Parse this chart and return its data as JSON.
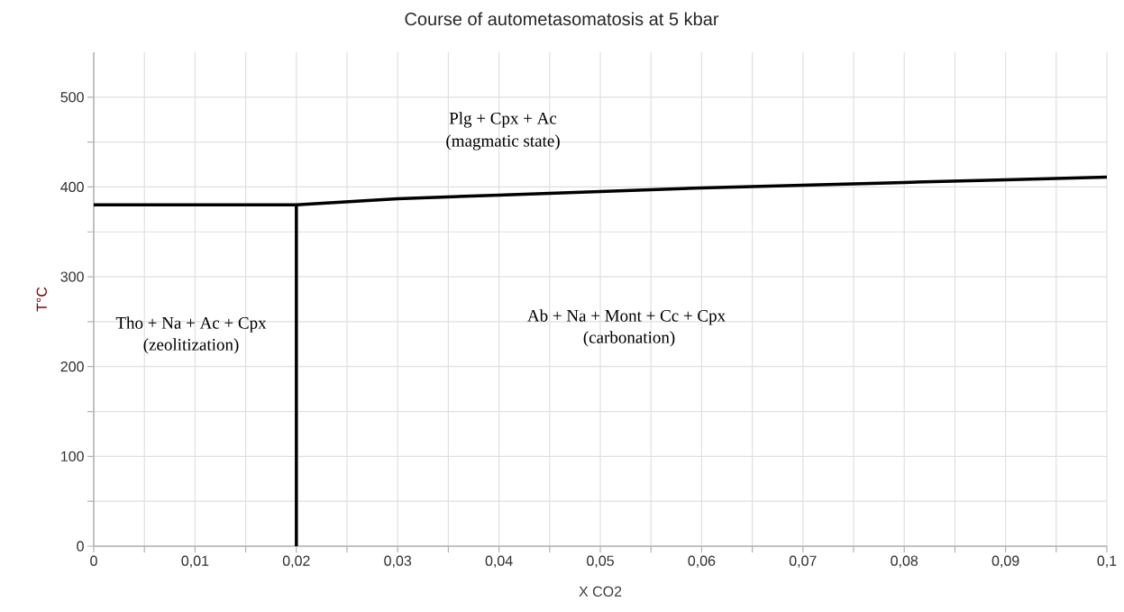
{
  "chart_data": {
    "type": "line",
    "title": "Course of autometasomatosis at 5 kbar",
    "xlabel": "X CO2",
    "ylabel": "T°C",
    "xlim": [
      0,
      0.1
    ],
    "ylim": [
      0,
      550
    ],
    "xticks": [
      0,
      {
        "value": 0.005,
        "label": null
      },
      {
        "value": 0.01,
        "label": "0,01"
      },
      {
        "value": 0.015,
        "label": null
      },
      {
        "value": 0.02,
        "label": "0,02"
      },
      {
        "value": 0.025,
        "label": null
      },
      {
        "value": 0.03,
        "label": "0,03"
      },
      {
        "value": 0.035,
        "label": null
      },
      {
        "value": 0.04,
        "label": "0,04"
      },
      {
        "value": 0.045,
        "label": null
      },
      {
        "value": 0.05,
        "label": "0,05"
      },
      {
        "value": 0.055,
        "label": null
      },
      {
        "value": 0.06,
        "label": "0,06"
      },
      {
        "value": 0.065,
        "label": null
      },
      {
        "value": 0.07,
        "label": "0,07"
      },
      {
        "value": 0.075,
        "label": null
      },
      {
        "value": 0.08,
        "label": "0,08"
      },
      {
        "value": 0.085,
        "label": null
      },
      {
        "value": 0.09,
        "label": "0,09"
      },
      {
        "value": 0.095,
        "label": null
      },
      {
        "value": 0.1,
        "label": "0,1"
      }
    ],
    "yticks": [
      0,
      {
        "value": 50,
        "label": null
      },
      100,
      {
        "value": 150,
        "label": null
      },
      200,
      {
        "value": 250,
        "label": null
      },
      300,
      {
        "value": 350,
        "label": null
      },
      400,
      {
        "value": 450,
        "label": null
      },
      500
    ],
    "grid": true,
    "marker": "none",
    "line_style": "solid",
    "series": [
      {
        "color": "#000000",
        "x": [
          0,
          0.02,
          0.03,
          0.04,
          0.05,
          0.06,
          0.07,
          0.08,
          0.09,
          0.1
        ],
        "values": [
          380,
          380,
          387,
          391,
          395,
          399,
          402,
          405,
          408,
          411
        ]
      },
      {
        "color": "#000000",
        "x": [
          0.02,
          0.02
        ],
        "values": [
          0,
          380
        ]
      }
    ],
    "annotations": [
      "Plg + Cpx + Ac",
      "(magmatic state)",
      "Tho + Na + Ac + Cpx",
      "(zeolitization)",
      "Ab + Na + Mont + Cc + Cpx",
      "(carbonation)"
    ]
  }
}
